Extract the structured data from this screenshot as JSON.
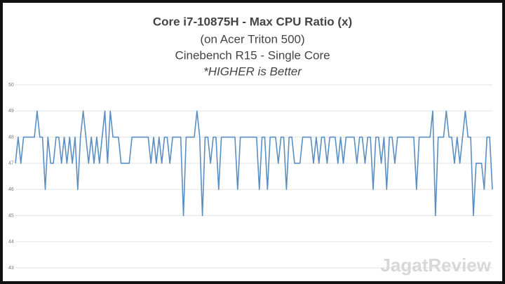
{
  "chart_data": {
    "type": "line",
    "title": "Core i7-10875H - Max CPU Ratio (x)",
    "subtitle": [
      "(on Acer Triton 500)",
      "Cinebench R15 - Single Core",
      "*HIGHER is Better"
    ],
    "watermark": "JagatReview",
    "color": "#5b8ec1",
    "grid": true,
    "ylim": [
      43,
      50
    ],
    "yticks": [
      43,
      44,
      45,
      46,
      47,
      48,
      49,
      50
    ],
    "values": [
      47,
      48,
      47,
      48,
      48,
      48,
      48,
      48,
      49,
      48,
      48,
      46,
      48,
      47,
      47,
      48,
      48,
      47,
      48,
      47,
      48,
      47,
      48,
      46,
      48,
      49,
      48,
      47,
      48,
      47,
      48,
      47,
      48,
      49,
      47,
      49,
      48,
      48,
      48,
      47,
      47,
      47,
      47,
      48,
      48,
      48,
      48,
      48,
      48,
      48,
      47,
      48,
      47,
      48,
      47,
      48,
      48,
      47,
      48,
      48,
      48,
      48,
      45,
      48,
      48,
      48,
      48,
      49,
      48,
      45,
      48,
      48,
      47,
      48,
      48,
      46,
      48,
      48,
      48,
      48,
      48,
      48,
      46,
      48,
      48,
      48,
      48,
      48,
      48,
      48,
      46,
      48,
      48,
      46,
      48,
      48,
      48,
      47,
      48,
      48,
      46,
      48,
      48,
      47,
      47,
      47,
      48,
      48,
      48,
      48,
      47,
      48,
      47,
      48,
      48,
      47,
      48,
      48,
      48,
      47,
      48,
      47,
      48,
      48,
      48,
      48,
      47,
      48,
      48,
      47,
      48,
      48,
      46,
      48,
      48,
      47,
      48,
      46,
      48,
      48,
      47,
      48,
      48,
      48,
      48,
      48,
      48,
      48,
      46,
      48,
      48,
      48,
      48,
      48,
      49,
      45,
      48,
      48,
      48,
      49,
      48,
      48,
      47,
      48,
      47,
      48,
      49,
      48,
      48,
      45,
      47,
      47,
      47,
      46,
      48,
      48,
      46
    ]
  }
}
